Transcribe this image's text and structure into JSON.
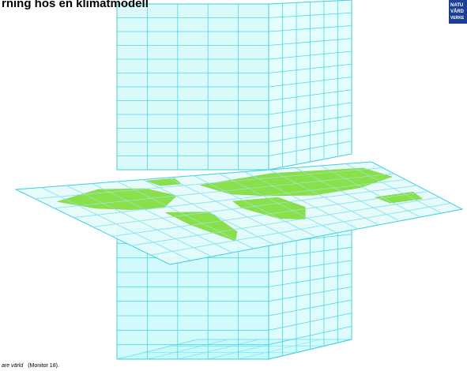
{
  "header": {
    "title": "rning hos en klimatmodell"
  },
  "logo": {
    "lines": [
      "NATU",
      "VÅRD",
      "VERKE"
    ]
  },
  "caption": {
    "italic": "are värld",
    "rest": "(Monitor 18)."
  }
}
